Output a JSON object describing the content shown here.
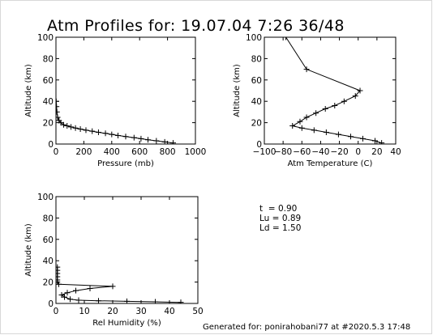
{
  "title": "Atm Profiles for: 19.07.04 7:26 36/48",
  "stats": [
    {
      "label": "t ",
      "value": "0.90"
    },
    {
      "label": "Lu",
      "value": "0.89"
    },
    {
      "label": "Ld",
      "value": "1.50"
    }
  ],
  "footer": "Generated for: ponirahobani77 at #2020.5.3 17:48",
  "chart_data": [
    {
      "type": "line",
      "xlabel": "Pressure (mb)",
      "ylabel": "Altitude (km)",
      "xlim": [
        0,
        1000
      ],
      "ylim": [
        0,
        100
      ],
      "xticks": [
        "0",
        "200",
        "400",
        "600",
        "800",
        "1000"
      ],
      "yticks": [
        "0",
        "20",
        "40",
        "60",
        "80",
        "100"
      ],
      "marker": "+",
      "x": [
        840,
        780,
        720,
        660,
        610,
        560,
        500,
        445,
        400,
        355,
        305,
        260,
        215,
        175,
        140,
        108,
        80,
        55,
        35,
        22,
        12,
        7,
        4,
        2
      ],
      "y": [
        1,
        2,
        3,
        4,
        5,
        6,
        7,
        8,
        9,
        10,
        11,
        12,
        13,
        14,
        15,
        16,
        17,
        18,
        20,
        22,
        25,
        30,
        35,
        40
      ]
    },
    {
      "type": "line",
      "xlabel": "Atm Temperature (C)",
      "ylabel": "Altitude (km)",
      "xlim": [
        -100,
        40
      ],
      "ylim": [
        0,
        100
      ],
      "xticks": [
        "−100",
        "−80",
        "−60",
        "−40",
        "−20",
        "0",
        "20",
        "40"
      ],
      "yticks": [
        "0",
        "20",
        "40",
        "60",
        "80",
        "100"
      ],
      "marker": "+",
      "x": [
        -77,
        -55,
        2,
        -3,
        -15,
        -25,
        -35,
        -45,
        -55,
        -62,
        -70,
        -60,
        -47,
        -34,
        -21,
        -8,
        5,
        18,
        25
      ],
      "y": [
        100,
        70,
        50,
        45,
        40,
        36,
        33,
        29,
        25,
        21,
        17,
        15,
        13,
        11,
        9,
        7,
        5,
        3,
        1
      ]
    },
    {
      "type": "line",
      "xlabel": "Rel Humidity (%)",
      "ylabel": "Altitude (km)",
      "xlim": [
        0,
        50
      ],
      "ylim": [
        0,
        100
      ],
      "xticks": [
        "0",
        "10",
        "20",
        "30",
        "40",
        "50"
      ],
      "yticks": [
        "0",
        "20",
        "40",
        "60",
        "80",
        "100"
      ],
      "marker": "+",
      "x": [
        44,
        35,
        25,
        15,
        8,
        5,
        3,
        2,
        4,
        7,
        12,
        20,
        1,
        0.5,
        0.5,
        0.5,
        0.5,
        0.5,
        0.5
      ],
      "y": [
        1,
        1.5,
        2,
        2.5,
        3,
        4,
        6,
        8,
        10,
        12,
        14,
        16,
        18,
        20,
        22,
        25,
        28,
        31,
        34
      ]
    }
  ]
}
